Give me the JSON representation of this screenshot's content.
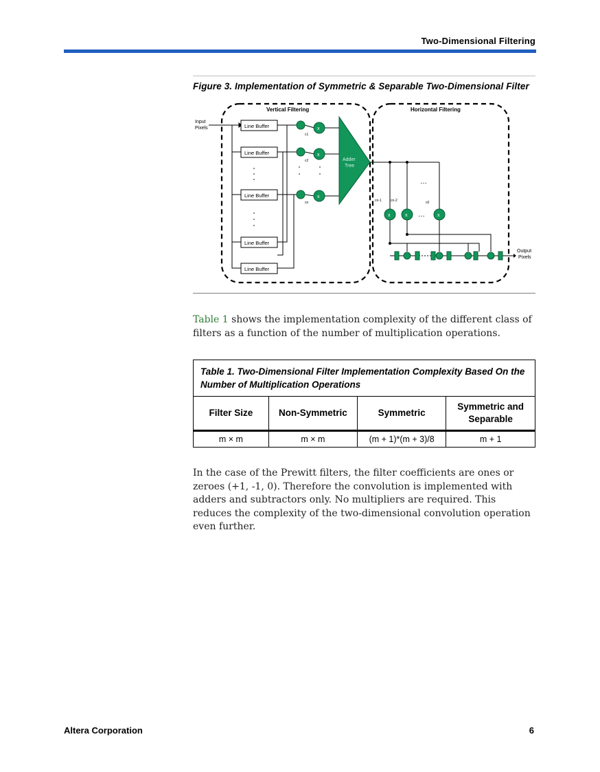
{
  "header": {
    "running_title": "Two-Dimensional Filtering"
  },
  "figure": {
    "caption": "Figure 3. Implementation of Symmetric & Separable Two-Dimensional Filter",
    "vertical_label": "Vertical Filtering",
    "horizontal_label": "Horizontal Filtering",
    "input_label_1": "Input",
    "input_label_2": "Pixels",
    "line_buffer": "Line Buffer",
    "adder_label_1": "Adder",
    "adder_label_2": "Tree",
    "coef_1": "c1",
    "coef_2": "c2",
    "coef_n": "cn",
    "coef_h1": "cn-1",
    "coef_h2": "cn-2",
    "coef_h3": "c0",
    "multiply": "x",
    "ellipsis": "…",
    "output_label_1": "Output",
    "output_label_2": "Pixels",
    "colors": {
      "node_fill": "#12965a",
      "node_stroke": "#0b5e38"
    }
  },
  "paragraph1": {
    "link": "Table 1",
    "text": " shows the implementation complexity of the different class of filters as a function of the number of multiplication operations."
  },
  "table": {
    "caption": "Table 1. Two-Dimensional Filter Implementation Complexity Based On the Number of Multiplication Operations",
    "headers": [
      "Filter Size",
      "Non-Symmetric",
      "Symmetric",
      "Symmetric and Separable"
    ],
    "row": [
      "m × m",
      "m × m",
      "(m + 1)*(m + 3)/8",
      "m + 1"
    ]
  },
  "paragraph2": {
    "text": "In the case of the Prewitt filters, the filter coefficients are ones or zeroes (+1, -1, 0). Therefore the convolution is implemented with adders and subtractors only. No multipliers are required. This reduces the complexity of the two-dimensional convolution operation even further."
  },
  "footer": {
    "company": "Altera Corporation",
    "page_number": "6"
  }
}
